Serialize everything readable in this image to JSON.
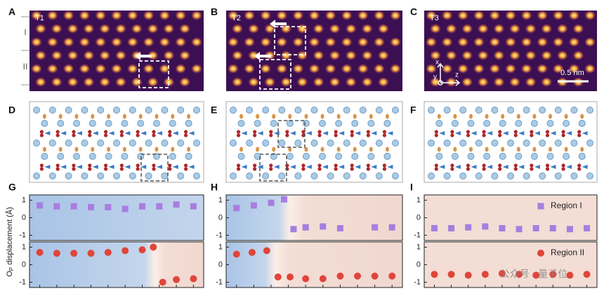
{
  "panels": [
    {
      "letter": "A",
      "label": "T1"
    },
    {
      "letter": "B",
      "label": "T2"
    },
    {
      "letter": "C",
      "label": "T3"
    },
    {
      "letter": "D"
    },
    {
      "letter": "E"
    },
    {
      "letter": "F"
    },
    {
      "letter": "G"
    },
    {
      "letter": "H"
    },
    {
      "letter": "I"
    }
  ],
  "region_labels": [
    "I",
    "II"
  ],
  "axis_labels": {
    "x": "x",
    "y": "y",
    "z": "z"
  },
  "scale_bar": "0.5 nm",
  "y_label": {
    "main": "O",
    "sub": "P",
    "rest": " displacement (Å)"
  },
  "watermark": "公众号 · 量子位",
  "chart_data": [
    {
      "type": "scatter",
      "x": [
        1,
        2,
        3,
        4,
        5,
        6,
        7,
        8,
        9,
        10
      ],
      "series": [
        {
          "color": "#a77ee0",
          "marker": "square",
          "values": [
            0.7,
            0.65,
            0.65,
            0.6,
            0.6,
            0.5,
            0.65,
            0.65,
            0.75,
            0.65
          ]
        }
      ],
      "xlim": [
        0.4,
        10.6
      ],
      "ylim": [
        -1.3,
        1.3
      ],
      "yticks": [
        -1,
        0,
        1
      ]
    },
    {
      "type": "scatter",
      "x": [
        1,
        2,
        3,
        4,
        5,
        6,
        7,
        7.65,
        8.2,
        9,
        10
      ],
      "series": [
        {
          "color": "#e0453a",
          "marker": "circle",
          "values": [
            0.7,
            0.65,
            0.65,
            0.65,
            0.7,
            0.8,
            0.85,
            1.0,
            -1.0,
            -0.85,
            -0.8
          ]
        }
      ],
      "xlim": [
        0.4,
        10.6
      ],
      "ylim": [
        -1.3,
        1.3
      ],
      "yticks": [
        -1,
        0,
        1
      ],
      "xticks": [
        1,
        2,
        3,
        4,
        5,
        6,
        7,
        8,
        9,
        10
      ]
    },
    {
      "type": "scatter",
      "x": [
        1,
        2,
        3,
        3.75,
        4.3,
        5,
        6,
        7,
        9,
        10
      ],
      "series": [
        {
          "color": "#a77ee0",
          "marker": "square",
          "values": [
            0.55,
            0.7,
            0.85,
            1.05,
            -0.65,
            -0.55,
            -0.5,
            -0.6,
            -0.55,
            -0.55
          ]
        }
      ],
      "xlim": [
        0.4,
        10.6
      ],
      "ylim": [
        -1.3,
        1.3
      ],
      "yticks": [
        -1,
        0,
        1
      ]
    },
    {
      "type": "scatter",
      "x": [
        1,
        1.9,
        2.75,
        3.4,
        4.1,
        5,
        6,
        7,
        8,
        9,
        10
      ],
      "series": [
        {
          "color": "#e0453a",
          "marker": "circle",
          "values": [
            0.6,
            0.7,
            0.8,
            -0.7,
            -0.7,
            -0.8,
            -0.8,
            -0.65,
            -0.65,
            -0.65,
            -0.65
          ]
        }
      ],
      "xlim": [
        0.4,
        10.6
      ],
      "ylim": [
        -1.3,
        1.3
      ],
      "yticks": [
        -1,
        0,
        1
      ],
      "xticks": [
        1,
        2,
        3,
        4,
        5,
        6,
        7,
        8,
        9,
        10
      ]
    },
    {
      "type": "scatter",
      "x": [
        1,
        2,
        3,
        4,
        5,
        6,
        7,
        8,
        9,
        10
      ],
      "series": [
        {
          "name": "Region I",
          "color": "#a77ee0",
          "marker": "square",
          "values": [
            -0.6,
            -0.6,
            -0.55,
            -0.5,
            -0.6,
            -0.65,
            -0.6,
            -0.6,
            -0.65,
            -0.6
          ]
        }
      ],
      "xlim": [
        0.4,
        10.6
      ],
      "ylim": [
        -1.3,
        1.3
      ],
      "yticks": [
        -1,
        0,
        1
      ],
      "legend": "upper right"
    },
    {
      "type": "scatter",
      "x": [
        1,
        2,
        3,
        4,
        5,
        6,
        7,
        8,
        9,
        10
      ],
      "series": [
        {
          "name": "Region II",
          "color": "#e0453a",
          "marker": "circle",
          "values": [
            -0.55,
            -0.55,
            -0.6,
            -0.55,
            -0.5,
            -0.55,
            -0.6,
            -0.55,
            -0.6,
            -0.55
          ]
        }
      ],
      "xlim": [
        0.4,
        10.6
      ],
      "ylim": [
        -1.3,
        1.3
      ],
      "yticks": [
        -1,
        0,
        1
      ],
      "xticks": [
        1,
        2,
        3,
        4,
        5,
        6,
        7,
        8,
        9,
        10
      ],
      "legend": "upper right"
    }
  ]
}
